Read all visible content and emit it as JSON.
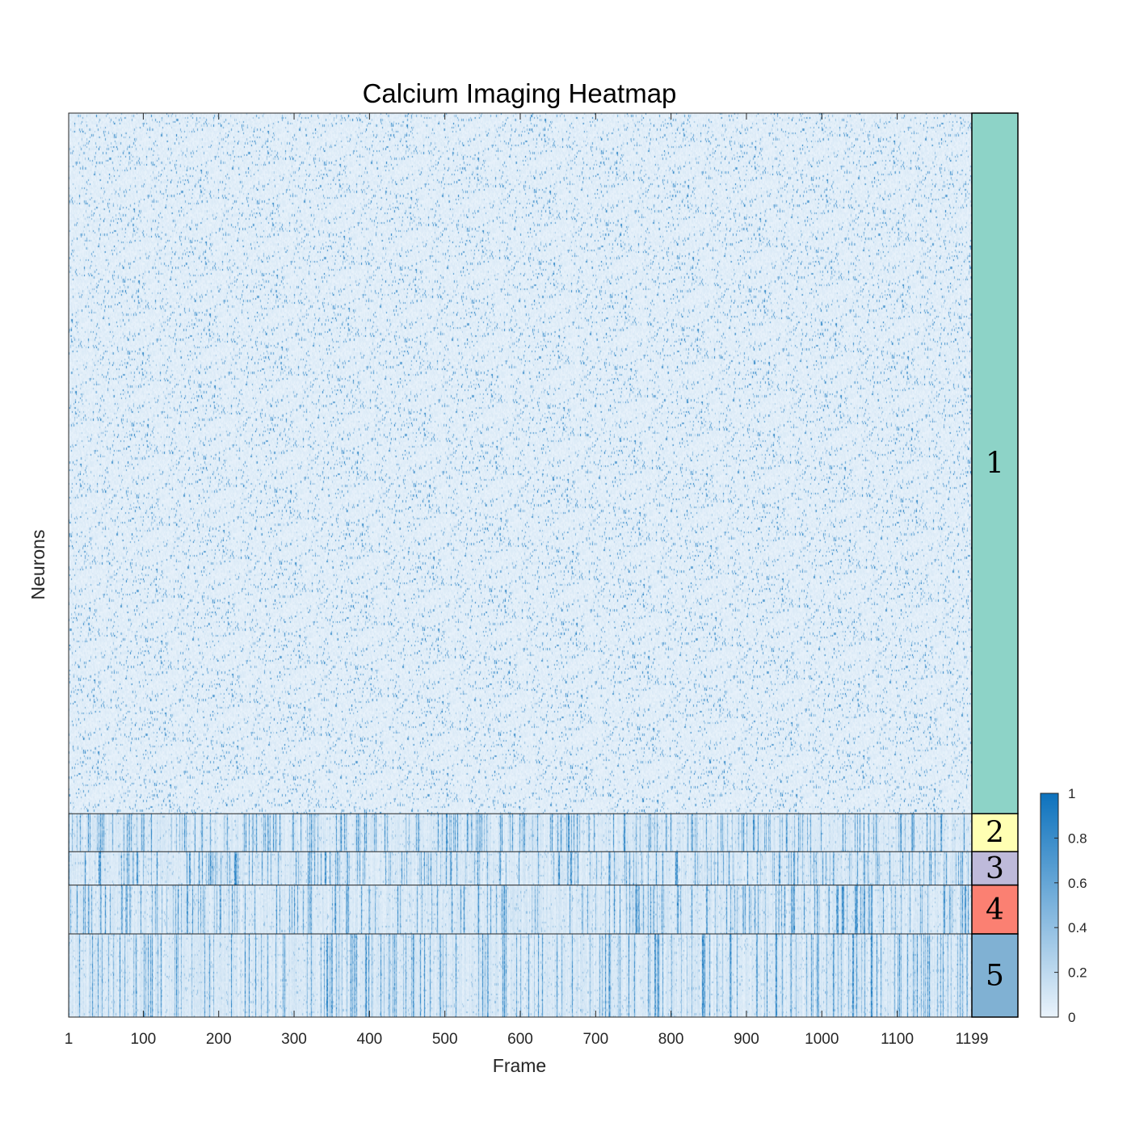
{
  "chart_data": {
    "type": "heatmap",
    "title": "Calcium Imaging Heatmap",
    "xlabel": "Frame",
    "ylabel": "Neurons",
    "xlim": [
      1,
      1199
    ],
    "x_ticks": [
      1,
      100,
      200,
      300,
      400,
      500,
      600,
      700,
      800,
      900,
      1000,
      1100,
      1199
    ],
    "colorbar": {
      "range": [
        0,
        1
      ],
      "ticks": [
        0,
        0.2,
        0.4,
        0.6,
        0.8,
        1
      ],
      "tick_labels": [
        "0",
        "0.2",
        "0.4",
        "0.6",
        "0.8",
        "1"
      ],
      "low_color": "#eaf3fb",
      "high_color": "#0d72bd"
    },
    "clusters": [
      {
        "label": "1",
        "color": "#8dd3c7",
        "row_share": 0.775
      },
      {
        "label": "2",
        "color": "#ffffb3",
        "row_share": 0.042
      },
      {
        "label": "3",
        "color": "#bebada",
        "row_share": 0.037
      },
      {
        "label": "4",
        "color": "#fb8072",
        "row_share": 0.054
      },
      {
        "label": "5",
        "color": "#80b1d3",
        "row_share": 0.092
      }
    ]
  }
}
